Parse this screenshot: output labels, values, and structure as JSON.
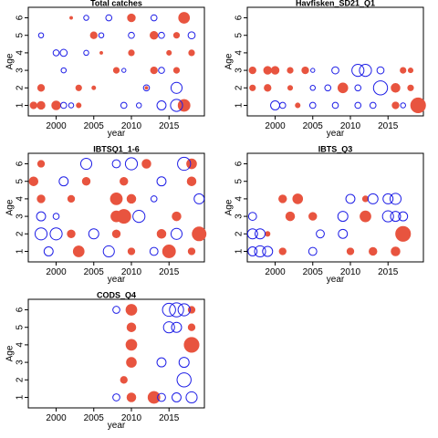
{
  "chart_data": [
    {
      "type": "scatter",
      "title": "Total catches",
      "xlabel": "year",
      "ylabel": "Age",
      "xlim": [
        1996.3,
        2019.7
      ],
      "ylim": [
        0.4,
        6.6
      ],
      "x_ticks": [
        2000,
        2005,
        2010,
        2015
      ],
      "y_ticks": [
        1,
        2,
        3,
        4,
        5,
        6
      ],
      "series": [
        {
          "name": "positive",
          "color": "#E8543F",
          "points": [
            [
              1997,
              1,
              0.35
            ],
            [
              1998,
              1,
              0.4
            ],
            [
              2000,
              1,
              0.45
            ],
            [
              2003,
              1,
              0.25
            ],
            [
              2017,
              1,
              0.6
            ],
            [
              1998,
              2,
              0.35
            ],
            [
              2003,
              2,
              0.3
            ],
            [
              2005,
              2,
              0.2
            ],
            [
              2008,
              3,
              0.3
            ],
            [
              2013,
              3,
              0.35
            ],
            [
              2016,
              3,
              0.3
            ],
            [
              2010,
              4,
              0.3
            ],
            [
              2015,
              4,
              0.25
            ],
            [
              2018,
              4,
              0.3
            ],
            [
              2005,
              5,
              0.35
            ],
            [
              2013,
              5,
              0.4
            ],
            [
              2016,
              5,
              0.3
            ],
            [
              2010,
              6,
              0.4
            ],
            [
              2017,
              6,
              0.55
            ],
            [
              2002,
              6,
              0.15
            ],
            [
              2006,
              4,
              0.15
            ],
            [
              2012,
              2,
              0.15
            ]
          ]
        },
        {
          "name": "negative",
          "color": "#1E1EE6",
          "points": [
            [
              2001,
              1,
              0.3
            ],
            [
              2002,
              1,
              0.25
            ],
            [
              2009,
              1,
              0.3
            ],
            [
              2014,
              1,
              0.45
            ],
            [
              2016,
              1,
              0.6
            ],
            [
              2012,
              2,
              0.3
            ],
            [
              2016,
              2,
              0.55
            ],
            [
              2001,
              3,
              0.25
            ],
            [
              2014,
              3,
              0.3
            ],
            [
              2000,
              4,
              0.3
            ],
            [
              2001,
              4,
              0.35
            ],
            [
              2004,
              4,
              0.25
            ],
            [
              1998,
              5,
              0.25
            ],
            [
              2006,
              5,
              0.25
            ],
            [
              2010,
              5,
              0.3
            ],
            [
              2014,
              5,
              0.3
            ],
            [
              2018,
              5,
              0.35
            ],
            [
              2004,
              6,
              0.25
            ],
            [
              2007,
              6,
              0.3
            ],
            [
              2013,
              6,
              0.3
            ],
            [
              2009,
              3,
              0.2
            ],
            [
              2011,
              1,
              0.25
            ]
          ]
        }
      ]
    },
    {
      "type": "scatter",
      "title": "Havfisken_SD21_Q1",
      "xlabel": "year",
      "ylabel": "Age",
      "xlim": [
        1996.3,
        2019.7
      ],
      "ylim": [
        0.4,
        6.6
      ],
      "x_ticks": [
        2000,
        2005,
        2010,
        2015
      ],
      "y_ticks": [
        1,
        2,
        3,
        4,
        5,
        6
      ],
      "series": [
        {
          "name": "positive",
          "color": "#E8543F",
          "points": [
            [
              1997,
              3,
              0.35
            ],
            [
              1999,
              3,
              0.4
            ],
            [
              2000,
              3,
              0.4
            ],
            [
              2002,
              3,
              0.3
            ],
            [
              2004,
              3,
              0.35
            ],
            [
              2017,
              3,
              0.3
            ],
            [
              2018,
              3,
              0.25
            ],
            [
              1997,
              2,
              0.3
            ],
            [
              1999,
              2,
              0.35
            ],
            [
              2002,
              2,
              0.25
            ],
            [
              2009,
              2,
              0.5
            ],
            [
              2016,
              2,
              0.45
            ],
            [
              2018,
              2,
              0.3
            ],
            [
              2003,
              1,
              0.25
            ],
            [
              2016,
              1,
              0.35
            ],
            [
              2019,
              1,
              0.75
            ]
          ]
        },
        {
          "name": "negative",
          "color": "#1E1EE6",
          "points": [
            [
              2005,
              3,
              0.2
            ],
            [
              2008,
              3,
              0.35
            ],
            [
              2011,
              3,
              0.6
            ],
            [
              2012,
              3,
              0.6
            ],
            [
              2014,
              3,
              0.35
            ],
            [
              2005,
              2,
              0.25
            ],
            [
              2007,
              2,
              0.3
            ],
            [
              2011,
              2,
              0.3
            ],
            [
              2014,
              2,
              0.7
            ],
            [
              2000,
              1,
              0.45
            ],
            [
              2001,
              1,
              0.3
            ],
            [
              2005,
              1,
              0.3
            ],
            [
              2008,
              1,
              0.3
            ],
            [
              2011,
              1,
              0.3
            ],
            [
              2013,
              1,
              0.3
            ],
            [
              2017,
              1,
              0.25
            ]
          ]
        }
      ]
    },
    {
      "type": "scatter",
      "title": "IBTSQ1_1-6",
      "xlabel": "year",
      "ylabel": "Age",
      "xlim": [
        1996.3,
        2019.7
      ],
      "ylim": [
        0.4,
        6.6
      ],
      "x_ticks": [
        2000,
        2005,
        2010,
        2015
      ],
      "y_ticks": [
        1,
        2,
        3,
        4,
        5,
        6
      ],
      "series": [
        {
          "name": "positive",
          "color": "#E8543F",
          "points": [
            [
              2003,
              1,
              0.55
            ],
            [
              2010,
              1,
              0.35
            ],
            [
              2015,
              1,
              0.65
            ],
            [
              2018,
              1,
              0.35
            ],
            [
              2002,
              2,
              0.4
            ],
            [
              2008,
              2,
              0.4
            ],
            [
              2014,
              2,
              0.45
            ],
            [
              2019,
              2,
              0.7
            ],
            [
              2008,
              3,
              0.55
            ],
            [
              2009,
              3,
              0.7
            ],
            [
              2016,
              3,
              0.45
            ],
            [
              1998,
              4,
              0.4
            ],
            [
              2002,
              4,
              0.35
            ],
            [
              2008,
              4,
              0.6
            ],
            [
              2010,
              4,
              0.45
            ],
            [
              1997,
              5,
              0.45
            ],
            [
              2004,
              5,
              0.4
            ],
            [
              2009,
              5,
              0.4
            ],
            [
              2018,
              5,
              0.45
            ],
            [
              1998,
              6,
              0.35
            ],
            [
              2012,
              6,
              0.45
            ],
            [
              2018,
              6,
              0.5
            ]
          ]
        },
        {
          "name": "negative",
          "color": "#1E1EE6",
          "points": [
            [
              1999,
              1,
              0.45
            ],
            [
              2007,
              1,
              0.55
            ],
            [
              2013,
              1,
              0.4
            ],
            [
              1998,
              2,
              0.6
            ],
            [
              2000,
              2,
              0.6
            ],
            [
              2005,
              2,
              0.5
            ],
            [
              2016,
              2,
              0.55
            ],
            [
              1998,
              3,
              0.45
            ],
            [
              2011,
              3,
              0.6
            ],
            [
              2019,
              4,
              0.5
            ],
            [
              2013,
              4,
              0.3
            ],
            [
              2001,
              5,
              0.45
            ],
            [
              2014,
              5,
              0.45
            ],
            [
              2004,
              6,
              0.55
            ],
            [
              2008,
              6,
              0.4
            ],
            [
              2010,
              6,
              0.6
            ],
            [
              2017,
              6,
              0.65
            ],
            [
              2000,
              3,
              0.3
            ]
          ]
        }
      ]
    },
    {
      "type": "scatter",
      "title": "IBTS_Q3",
      "xlabel": "year",
      "ylabel": "Age",
      "xlim": [
        1996.3,
        2019.7
      ],
      "ylim": [
        0.4,
        6.6
      ],
      "x_ticks": [
        2000,
        2005,
        2010,
        2015
      ],
      "y_ticks": [
        1,
        2,
        3,
        4,
        5,
        6
      ],
      "series": [
        {
          "name": "positive",
          "color": "#E8543F",
          "points": [
            [
              2001,
              1,
              0.35
            ],
            [
              2010,
              1,
              0.35
            ],
            [
              2013,
              1,
              0.4
            ],
            [
              2016,
              1,
              0.45
            ],
            [
              2017,
              2,
              0.75
            ],
            [
              2012,
              3,
              0.55
            ],
            [
              2002,
              3,
              0.45
            ],
            [
              2005,
              3,
              0.4
            ],
            [
              2003,
              4,
              0.5
            ],
            [
              2001,
              4,
              0.4
            ],
            [
              2012,
              4,
              0.3
            ],
            [
              1999,
              2,
              0.25
            ]
          ]
        },
        {
          "name": "negative",
          "color": "#1E1EE6",
          "points": [
            [
              1997,
              1,
              0.45
            ],
            [
              1998,
              1,
              0.55
            ],
            [
              1999,
              1,
              0.5
            ],
            [
              2005,
              1,
              0.4
            ],
            [
              1997,
              2,
              0.5
            ],
            [
              1998,
              2,
              0.5
            ],
            [
              2006,
              2,
              0.4
            ],
            [
              2009,
              2,
              0.45
            ],
            [
              1997,
              3,
              0.4
            ],
            [
              2009,
              3,
              0.5
            ],
            [
              2015,
              3,
              0.55
            ],
            [
              2016,
              3,
              0.5
            ],
            [
              2017,
              3,
              0.45
            ],
            [
              2010,
              4,
              0.45
            ],
            [
              2013,
              4,
              0.5
            ],
            [
              2015,
              4,
              0.5
            ],
            [
              2016,
              4,
              0.55
            ]
          ]
        }
      ]
    },
    {
      "type": "scatter",
      "title": "CODS_Q4",
      "xlabel": "year",
      "ylabel": "Age",
      "xlim": [
        1996.3,
        2019.7
      ],
      "ylim": [
        0.4,
        6.6
      ],
      "x_ticks": [
        2000,
        2005,
        2010,
        2015
      ],
      "y_ticks": [
        1,
        2,
        3,
        4,
        5,
        6
      ],
      "series": [
        {
          "name": "positive",
          "color": "#E8543F",
          "points": [
            [
              2010,
              1,
              0.45
            ],
            [
              2013,
              1,
              0.6
            ],
            [
              2009,
              2,
              0.35
            ],
            [
              2010,
              3,
              0.5
            ],
            [
              2010,
              4,
              0.55
            ],
            [
              2018,
              4,
              0.75
            ],
            [
              2010,
              5,
              0.45
            ],
            [
              2018,
              5,
              0.35
            ],
            [
              2010,
              6,
              0.55
            ],
            [
              2018,
              6,
              0.35
            ]
          ]
        },
        {
          "name": "negative",
          "color": "#1E1EE6",
          "points": [
            [
              2008,
              1,
              0.35
            ],
            [
              2014,
              1,
              0.4
            ],
            [
              2016,
              1,
              0.45
            ],
            [
              2018,
              1,
              0.55
            ],
            [
              2017,
              2,
              0.7
            ],
            [
              2014,
              3,
              0.45
            ],
            [
              2017,
              3,
              0.5
            ],
            [
              2015,
              5,
              0.55
            ],
            [
              2016,
              5,
              0.5
            ],
            [
              2015,
              6,
              0.65
            ],
            [
              2016,
              6,
              0.7
            ],
            [
              2017,
              6,
              0.6
            ],
            [
              2008,
              6,
              0.35
            ]
          ]
        }
      ]
    }
  ]
}
